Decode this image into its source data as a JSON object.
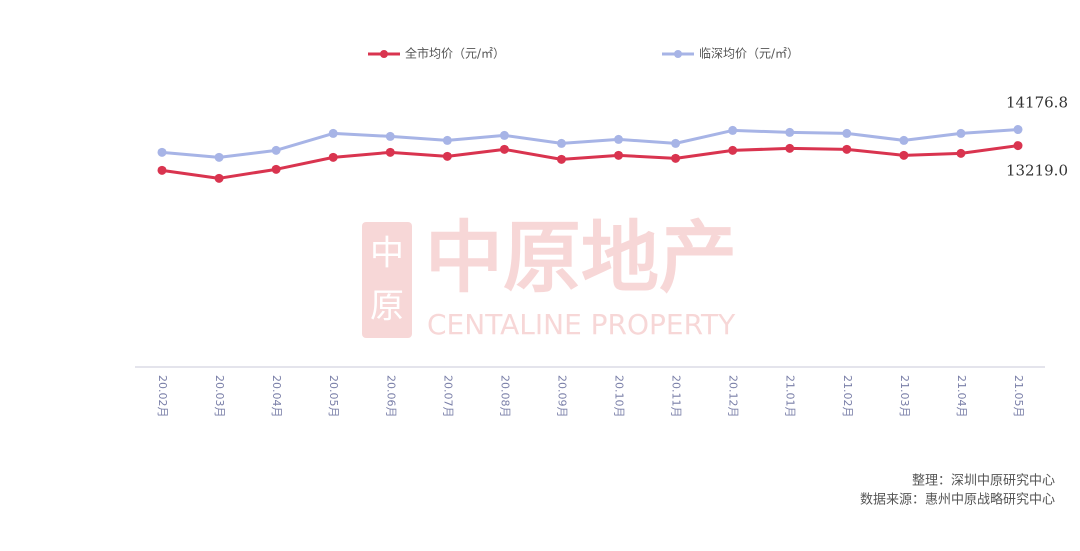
{
  "chart_data": {
    "type": "line",
    "categories": [
      "20.02月",
      "20.03月",
      "20.04月",
      "20.05月",
      "20.06月",
      "20.07月",
      "20.08月",
      "20.09月",
      "20.10月",
      "20.11月",
      "20.12月",
      "21.01月",
      "21.02月",
      "21.03月",
      "21.04月",
      "21.05月"
    ],
    "series": [
      {
        "name": "全市均价（元/㎡）",
        "color": "#d9344f",
        "values": [
          11741,
          11264,
          11801,
          12516,
          12814,
          12576,
          12993,
          12397,
          12635,
          12456,
          12933,
          13052,
          12993,
          12635,
          12754,
          13219.0
        ],
        "value_labels": [
          null,
          null,
          null,
          null,
          null,
          null,
          null,
          null,
          null,
          null,
          null,
          null,
          null,
          null,
          null,
          "13219.0"
        ]
      },
      {
        "name": "临深均价（元/㎡）",
        "color": "#a7b4e6",
        "values": [
          12814,
          12516,
          12933,
          13946,
          13768,
          13529,
          13827,
          13350,
          13589,
          13350,
          14125,
          14006,
          13946,
          13529,
          13946,
          14176.8
        ],
        "value_labels": [
          null,
          null,
          null,
          null,
          null,
          null,
          null,
          null,
          null,
          null,
          null,
          null,
          null,
          null,
          null,
          "14176.8"
        ]
      }
    ],
    "ylim": [
      0,
      16000
    ],
    "grid": false,
    "legend": "top",
    "watermark": [
      "中原地产",
      "CENTALINE PROPERTY"
    ],
    "notes": [
      "整理：深圳中原研究中心",
      "数据来源：惠州中原战略研究中心"
    ]
  }
}
